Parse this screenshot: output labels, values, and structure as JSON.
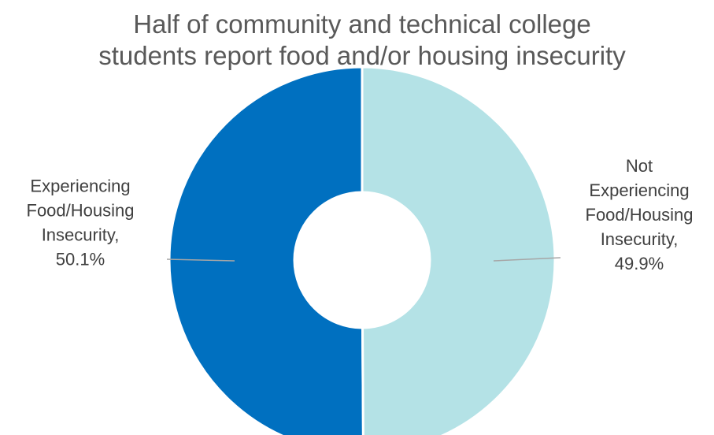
{
  "chart_data": {
    "type": "pie",
    "variant": "donut",
    "title": "Half of community and technical college students report food and/or housing insecurity",
    "title_lines": [
      "Half of community and technical college",
      "students report food and/or housing insecurity"
    ],
    "slices": [
      {
        "label": "Experiencing Food/Housing Insecurity",
        "value": 50.1,
        "value_text": "50.1%",
        "label_lines": [
          "Experiencing",
          "Food/Housing",
          "Insecurity,",
          "50.1%"
        ],
        "color": "#0070C0"
      },
      {
        "label": "Not Experiencing Food/Housing Insecurity",
        "value": 49.9,
        "value_text": "49.9%",
        "label_lines": [
          "Not",
          "Experiencing",
          "Food/Housing",
          "Insecurity,",
          "49.9%"
        ],
        "color": "#B4E2E6"
      }
    ],
    "legend": "none"
  }
}
